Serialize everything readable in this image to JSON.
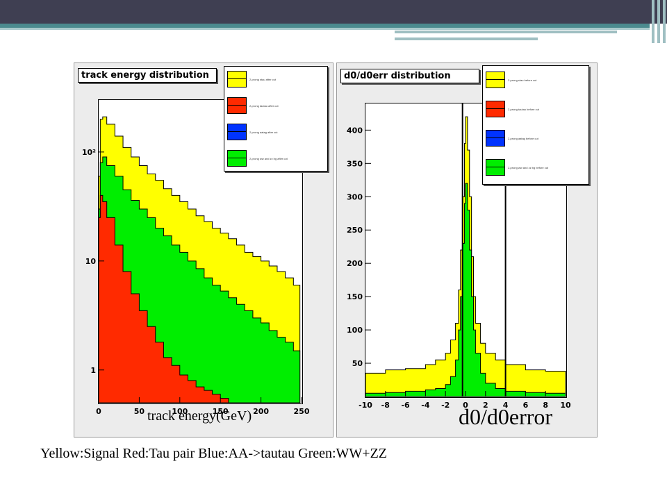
{
  "colors": {
    "signal": "#ffff00",
    "tau": "#ff2a00",
    "aa": "#0033ff",
    "ww": "#00ee00"
  },
  "chart_data": [
    {
      "type": "area",
      "title": "track energy distribution",
      "xlabel": "track energy(GeV)",
      "ylabel": "",
      "xlim": [
        0,
        250
      ],
      "yscale": "log",
      "ylim": [
        0.5,
        300
      ],
      "x_ticks": [
        "0",
        "50",
        "100",
        "150",
        "200",
        "250"
      ],
      "y_ticks": [
        {
          "v": 1,
          "label": "1"
        },
        {
          "v": 10,
          "label": "10"
        },
        {
          "v": 100,
          "label": "10²"
        }
      ],
      "legend_position": "top-right",
      "legend": [
        "2-prong stau after cut",
        "2-prong tautau after cut",
        "2-prong aatag after cut",
        "2-prong ww and zz bg after cut"
      ],
      "x": [
        0,
        2,
        5,
        10,
        20,
        30,
        40,
        50,
        60,
        70,
        80,
        90,
        100,
        110,
        120,
        130,
        140,
        150,
        160,
        170,
        180,
        190,
        200,
        210,
        220,
        230,
        240,
        248
      ],
      "series": [
        {
          "name": "2-prong stau after cut",
          "color": "yellow",
          "values": [
            60,
            200,
            210,
            180,
            140,
            110,
            90,
            75,
            63,
            55,
            46,
            40,
            35,
            30,
            26,
            23,
            20,
            18,
            16,
            14,
            12,
            11,
            10,
            9,
            8,
            7,
            6,
            5
          ]
        },
        {
          "name": "2-prong ww and zz bg after cut",
          "color": "green",
          "values": [
            30,
            80,
            90,
            75,
            60,
            45,
            36,
            30,
            25,
            20,
            17,
            14,
            12,
            10,
            8.5,
            7,
            6,
            5.3,
            4.6,
            4,
            3.5,
            3,
            2.7,
            2.3,
            2,
            1.8,
            1.5,
            1.4
          ]
        },
        {
          "name": "2-prong tautau after cut",
          "color": "red",
          "values": [
            25,
            40,
            35,
            25,
            14,
            8,
            5,
            3.5,
            2.5,
            1.8,
            1.3,
            1.1,
            0.9,
            0.8,
            0.7,
            0.65,
            0.6,
            0.55,
            0.5,
            0.5,
            0.5,
            0.5,
            0.5,
            0.5,
            0.5,
            0.5,
            0.5,
            0.5
          ]
        }
      ]
    },
    {
      "type": "area",
      "title": "d0/d0err distribution",
      "xlabel": "d0/d0error",
      "ylabel": "",
      "xlim": [
        -10,
        10
      ],
      "ylim": [
        0,
        440
      ],
      "x_ticks": [
        "-10",
        "-8",
        "-6",
        "-4",
        "-2",
        "0",
        "2",
        "4",
        "6",
        "8",
        "10"
      ],
      "y_ticks": [
        "50",
        "100",
        "150",
        "200",
        "250",
        "300",
        "350",
        "400"
      ],
      "cut_lines": [
        -0.3,
        4
      ],
      "legend_position": "top-right",
      "legend": [
        "2-prong stau before cut",
        "2-prong tautau before cut",
        "2-prong aatag before cut",
        "2-prong ww and zz bg before cut"
      ],
      "x": [
        -10,
        -8,
        -6,
        -4,
        -3,
        -2,
        -1.5,
        -1,
        -0.7,
        -0.5,
        -0.3,
        -0.1,
        0,
        0.2,
        0.4,
        0.6,
        0.8,
        1,
        1.5,
        2,
        3,
        4,
        6,
        8,
        10
      ],
      "series": [
        {
          "name": "2-prong stau before cut",
          "color": "yellow",
          "values": [
            35,
            40,
            42,
            48,
            55,
            65,
            85,
            110,
            160,
            220,
            300,
            380,
            420,
            370,
            300,
            210,
            150,
            110,
            80,
            65,
            55,
            48,
            40,
            38,
            35
          ]
        },
        {
          "name": "2-prong ww and zz bg before cut",
          "color": "green",
          "values": [
            5,
            6,
            8,
            10,
            12,
            18,
            30,
            55,
            100,
            150,
            230,
            290,
            320,
            280,
            220,
            150,
            100,
            65,
            35,
            20,
            12,
            8,
            6,
            5,
            5
          ]
        },
        {
          "name": "2-prong tautau before cut",
          "color": "red",
          "values": [
            0,
            0,
            0,
            0,
            0,
            0,
            0,
            0,
            0,
            0,
            0,
            0,
            0,
            0,
            0,
            0,
            0,
            0,
            0,
            0,
            0,
            0,
            0,
            0,
            0
          ]
        }
      ]
    }
  ],
  "caption": "Yellow:Signal Red:Tau pair Blue:AA->tautau Green:WW+ZZ"
}
